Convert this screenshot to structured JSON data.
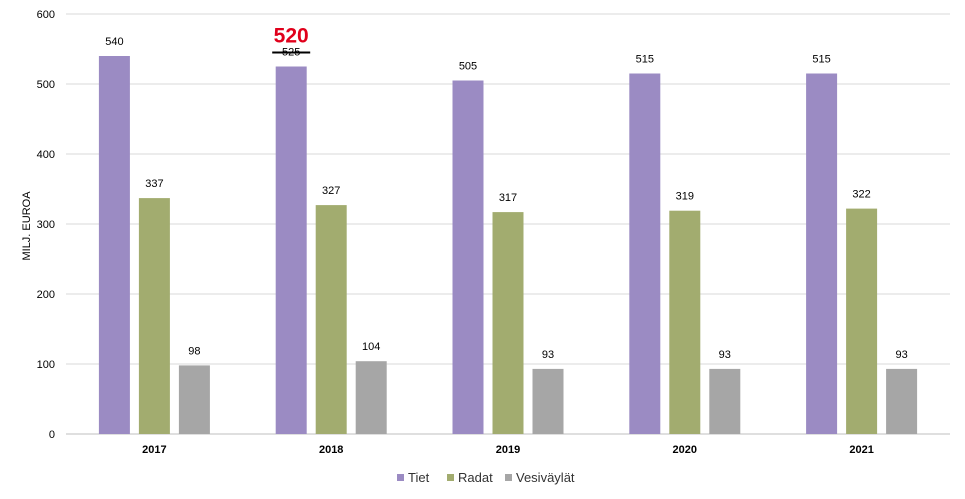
{
  "chart_data": {
    "type": "bar",
    "ylabel": "MILJ. EUROA",
    "ylim": [
      0,
      600
    ],
    "yticks": [
      0,
      100,
      200,
      300,
      400,
      500,
      600
    ],
    "grid": true,
    "legend_position": "bottom",
    "categories": [
      "2017",
      "2018",
      "2019",
      "2020",
      "2021"
    ],
    "series": [
      {
        "name": "Tiet",
        "color": "#9b8bc3",
        "values": [
          540,
          525,
          505,
          515,
          515
        ]
      },
      {
        "name": "Radat",
        "color": "#a2ac6f",
        "values": [
          337,
          327,
          317,
          319,
          322
        ]
      },
      {
        "name": "Vesiväylät",
        "color": "#a6a6a6",
        "values": [
          98,
          104,
          93,
          93,
          93
        ]
      }
    ],
    "annotation": {
      "category": "2018",
      "series": "Tiet",
      "struck_value": "525",
      "new_value": "520",
      "color": "#e0001b"
    }
  }
}
